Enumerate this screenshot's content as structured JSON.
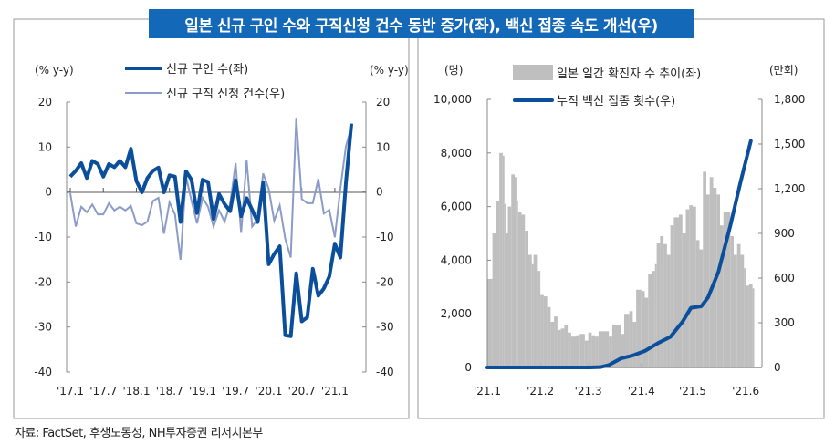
{
  "title": "일본 신규 구인 수와 구직신청 건수 동반 증가(좌), 백신 접종 속도 개선(우)",
  "source": "자료: FactSet, 후생노동성, NH투자증권 리서치본부",
  "colors": {
    "title_bg": "#1468b8",
    "thick_line": "#0b4f9c",
    "thin_line": "#8a9cc7",
    "bars": "#bfbfbf"
  },
  "chart_data": [
    {
      "type": "line",
      "left_unit": "(% y-y)",
      "right_unit": "(% y-y)",
      "ylim": [
        -40,
        20
      ],
      "y_ticks": [
        "20",
        "10",
        "0",
        "-10",
        "-20",
        "-30",
        "-40"
      ],
      "x_tick_labels": [
        "'17.1",
        "'17.7",
        "'18.1",
        "'18.7",
        "'19.1",
        "'19.7",
        "'20.1",
        "'20.7",
        "'21.1"
      ],
      "x_start": "2017-01",
      "x_step": "month",
      "series": [
        {
          "name": "신규 구인 수(좌)",
          "axis": "left",
          "values": [
            3.5,
            4.8,
            6.5,
            3.2,
            7,
            6.3,
            3.5,
            6.3,
            5.6,
            7,
            5.6,
            9.7,
            2.5,
            0,
            3.2,
            4.8,
            5.5,
            0,
            3.8,
            3.5,
            -6.6,
            4.7,
            2.8,
            -4.6,
            2.8,
            2.3,
            -5.9,
            -0.4,
            -2.6,
            -4.2,
            2.7,
            -5.3,
            -1.3,
            -3.9,
            -6.6,
            2.2,
            -16,
            -13.7,
            -12,
            -31.8,
            -32,
            -18,
            -28.7,
            -27.8,
            -17,
            -23,
            -21.4,
            -18.7,
            -11.4,
            -14.5,
            2,
            15.3
          ]
        },
        {
          "name": "신규 구직 신청 건수(우)",
          "axis": "right",
          "values": [
            -0.2,
            -7.6,
            -3.2,
            -4.4,
            -2.7,
            -4.9,
            -4.9,
            -2.4,
            -4,
            -3.2,
            -4,
            -3,
            -6.9,
            -7.3,
            -6.5,
            -1.9,
            -1.2,
            -9.2,
            -2.2,
            -4.9,
            -15,
            3.5,
            -1.9,
            -6.9,
            -1.2,
            -3.2,
            -7.6,
            -4,
            -6.5,
            -2.6,
            6.5,
            -9,
            7.2,
            -7.6,
            -5.9,
            4.2,
            0.8,
            -6.3,
            -2.9,
            -10.3,
            -14.5,
            16.6,
            -1.5,
            -2.4,
            -2.4,
            3,
            -4.7,
            -3.9,
            -10,
            0.8,
            10.2,
            14.6
          ]
        }
      ]
    },
    {
      "type": "bar+line",
      "left_unit": "(명)",
      "right_unit": "(만회)",
      "left_ylim": [
        0,
        10000
      ],
      "right_ylim": [
        0,
        1800
      ],
      "left_ticks": [
        "10,000",
        "8,000",
        "6,000",
        "4,000",
        "2,000",
        "0"
      ],
      "right_ticks": [
        "1,800",
        "1,500",
        "1,200",
        "900",
        "600",
        "300",
        "0"
      ],
      "x_tick_labels": [
        "'21.1",
        "'21.2",
        "'21.3",
        "'21.4",
        "'21.5",
        "'21.6"
      ],
      "x_tick_days": [
        0,
        31,
        59,
        90,
        120,
        151
      ],
      "bars": {
        "name": "일본 일간 확진자 수 추이(좌)",
        "points": [
          [
            0,
            3300
          ],
          [
            3,
            5000
          ],
          [
            5,
            6200
          ],
          [
            7,
            8000
          ],
          [
            9,
            7900
          ],
          [
            10,
            6100
          ],
          [
            11,
            5000
          ],
          [
            12,
            6000
          ],
          [
            14,
            7200
          ],
          [
            16,
            7100
          ],
          [
            17,
            6200
          ],
          [
            18,
            5800
          ],
          [
            20,
            5700
          ],
          [
            22,
            5100
          ],
          [
            24,
            4200
          ],
          [
            26,
            3850
          ],
          [
            27,
            4200
          ],
          [
            29,
            3600
          ],
          [
            31,
            2700
          ],
          [
            33,
            2650
          ],
          [
            35,
            2250
          ],
          [
            37,
            1700
          ],
          [
            39,
            1900
          ],
          [
            41,
            1400
          ],
          [
            43,
            1450
          ],
          [
            45,
            1600
          ],
          [
            47,
            1300
          ],
          [
            49,
            1150
          ],
          [
            52,
            1200
          ],
          [
            54,
            1250
          ],
          [
            57,
            1000
          ],
          [
            59,
            1300
          ],
          [
            61,
            1200
          ],
          [
            63,
            1150
          ],
          [
            65,
            1350
          ],
          [
            68,
            1350
          ],
          [
            71,
            1150
          ],
          [
            73,
            1600
          ],
          [
            76,
            1600
          ],
          [
            78,
            1250
          ],
          [
            80,
            2000
          ],
          [
            83,
            2100
          ],
          [
            85,
            1700
          ],
          [
            87,
            2900
          ],
          [
            90,
            2850
          ],
          [
            92,
            2600
          ],
          [
            94,
            3500
          ],
          [
            96,
            3600
          ],
          [
            98,
            3850
          ],
          [
            99,
            4650
          ],
          [
            101,
            4900
          ],
          [
            103,
            4600
          ],
          [
            105,
            4200
          ],
          [
            107,
            5300
          ],
          [
            109,
            5600
          ],
          [
            112,
            5700
          ],
          [
            114,
            5000
          ],
          [
            116,
            5900
          ],
          [
            118,
            6050
          ],
          [
            120,
            6000
          ],
          [
            122,
            4750
          ],
          [
            124,
            4400
          ],
          [
            126,
            7300
          ],
          [
            128,
            6450
          ],
          [
            130,
            7100
          ],
          [
            132,
            6700
          ],
          [
            134,
            6450
          ],
          [
            136,
            5300
          ],
          [
            138,
            5800
          ],
          [
            140,
            5800
          ],
          [
            142,
            4900
          ],
          [
            144,
            4200
          ],
          [
            146,
            4600
          ],
          [
            148,
            4200
          ],
          [
            150,
            3700
          ],
          [
            151,
            3050
          ],
          [
            153,
            3100
          ],
          [
            155,
            2950
          ],
          [
            156,
            2950
          ]
        ]
      },
      "line": {
        "name": "누적 백신 접종 횟수(우)",
        "points": [
          [
            0,
            0
          ],
          [
            60,
            0
          ],
          [
            66,
            2
          ],
          [
            71,
            16
          ],
          [
            78,
            60
          ],
          [
            85,
            80
          ],
          [
            92,
            110
          ],
          [
            100,
            165
          ],
          [
            107,
            205
          ],
          [
            114,
            305
          ],
          [
            119,
            400
          ],
          [
            125,
            410
          ],
          [
            129,
            470
          ],
          [
            135,
            640
          ],
          [
            142,
            950
          ],
          [
            148,
            1245
          ],
          [
            154,
            1520
          ]
        ]
      }
    }
  ]
}
